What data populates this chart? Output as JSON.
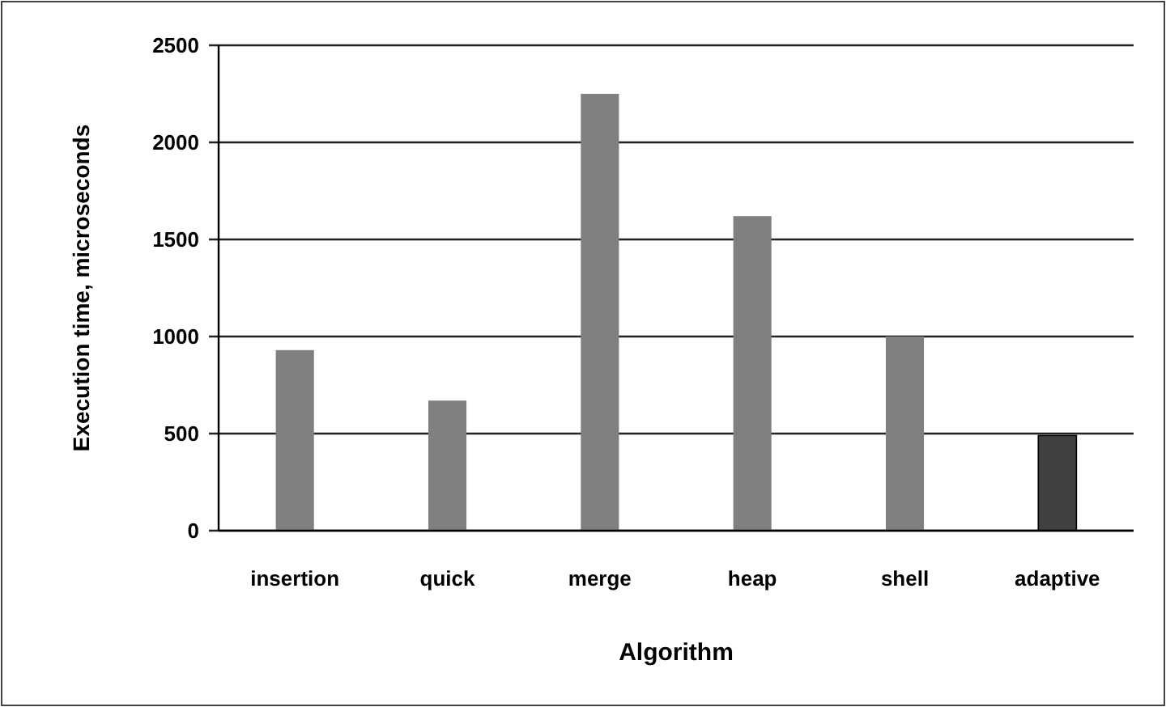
{
  "chart_data": {
    "type": "bar",
    "xlabel": "Algorithm",
    "ylabel": "Execution time, microseconds",
    "categories": [
      "insertion",
      "quick",
      "merge",
      "heap",
      "shell",
      "adaptive"
    ],
    "values": [
      930,
      670,
      2250,
      1620,
      1000,
      490
    ],
    "colors": [
      "#808080",
      "#808080",
      "#808080",
      "#808080",
      "#808080",
      "#404040"
    ],
    "ylim": [
      0,
      2500
    ],
    "yticks": [
      0,
      500,
      1000,
      1500,
      2000,
      2500
    ],
    "grid": "y"
  }
}
